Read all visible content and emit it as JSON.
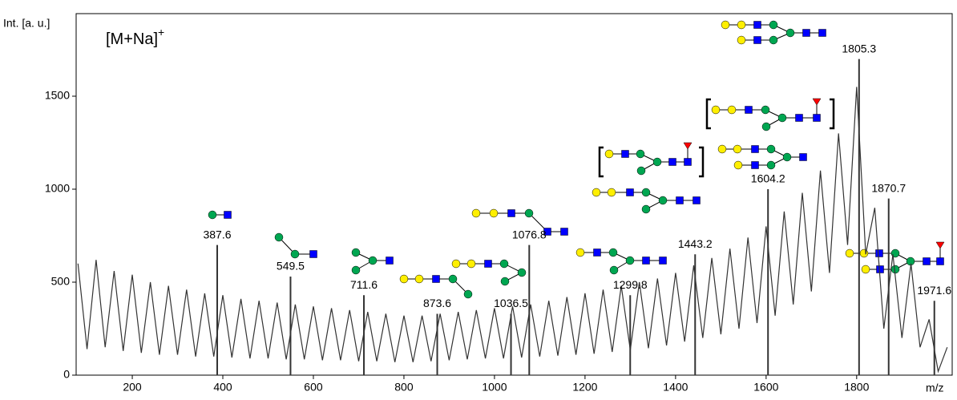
{
  "chart_data": {
    "type": "line",
    "y_axis_label": "Int. [a. u.]",
    "x_axis_label": "m/z",
    "annotation_text": "[M+Na]",
    "annotation_superscript": "+",
    "xlim": [
      76,
      2011
    ],
    "ylim": [
      0,
      1944
    ],
    "xticks": [
      200,
      400,
      600,
      800,
      1000,
      1200,
      1400,
      1600,
      1800
    ],
    "yticks": [
      0,
      500,
      1000,
      1500
    ],
    "series": [
      {
        "color": "#333333",
        "x": [
          80,
          100,
          120,
          140,
          160,
          180,
          200,
          220,
          240,
          260,
          280,
          300,
          320,
          340,
          360,
          380,
          400,
          420,
          440,
          460,
          480,
          500,
          520,
          540,
          560,
          580,
          600,
          620,
          640,
          660,
          680,
          700,
          720,
          740,
          760,
          780,
          800,
          820,
          840,
          860,
          880,
          900,
          920,
          940,
          960,
          980,
          1000,
          1020,
          1040,
          1060,
          1080,
          1100,
          1120,
          1140,
          1160,
          1180,
          1200,
          1220,
          1240,
          1260,
          1280,
          1300,
          1320,
          1340,
          1360,
          1380,
          1400,
          1420,
          1440,
          1460,
          1480,
          1500,
          1520,
          1540,
          1560,
          1580,
          1600,
          1620,
          1640,
          1660,
          1680,
          1700,
          1720,
          1740,
          1760,
          1780,
          1800,
          1820,
          1840,
          1860,
          1880,
          1900,
          1920,
          1940,
          1960,
          1980,
          2000
        ],
        "values": [
          600,
          140,
          620,
          150,
          560,
          130,
          540,
          120,
          500,
          110,
          480,
          110,
          460,
          100,
          440,
          100,
          430,
          95,
          410,
          90,
          400,
          90,
          390,
          85,
          380,
          85,
          370,
          80,
          360,
          80,
          350,
          75,
          340,
          75,
          330,
          70,
          320,
          70,
          320,
          75,
          330,
          80,
          340,
          85,
          350,
          90,
          360,
          90,
          370,
          95,
          380,
          100,
          400,
          105,
          420,
          110,
          440,
          115,
          460,
          125,
          480,
          135,
          500,
          145,
          520,
          160,
          550,
          180,
          590,
          200,
          630,
          220,
          680,
          250,
          740,
          280,
          800,
          320,
          880,
          380,
          980,
          450,
          1100,
          550,
          1300,
          700,
          1550,
          650,
          900,
          250,
          650,
          200,
          600,
          150,
          300,
          20,
          150
        ]
      }
    ],
    "peaks": {
      "color": "#333333",
      "x": [
        387.6,
        549.5,
        711.6,
        873.6,
        1036.5,
        1076.8,
        1299.8,
        1443.2,
        1604.2,
        1805.3,
        1870.7,
        1971.6
      ],
      "values": [
        700,
        530,
        430,
        330,
        330,
        700,
        430,
        650,
        1000,
        1700,
        950,
        400
      ]
    }
  }
}
